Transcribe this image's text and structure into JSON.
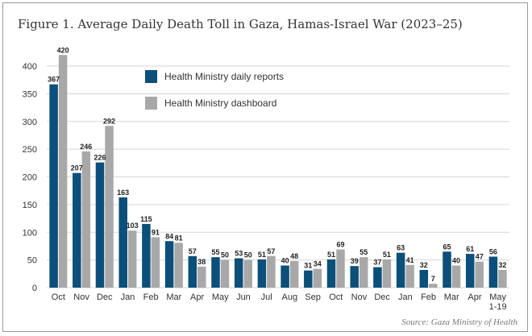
{
  "title": "Figure 1. Average Daily Death Toll in Gaza, Hamas-Israel War (2023–25)",
  "source": "Source: Gaza Ministry of Health",
  "chart_data": {
    "type": "bar",
    "ylim": [
      0,
      400
    ],
    "yticks": [
      0,
      50,
      100,
      150,
      200,
      250,
      300,
      350,
      400
    ],
    "grid": true,
    "legend_position": "top-center",
    "categories": [
      "Oct",
      "Nov",
      "Dec",
      "Jan",
      "Feb",
      "Mar",
      "Apr",
      "May",
      "Jun",
      "Jul",
      "Aug",
      "Sep",
      "Oct",
      "Nov",
      "Dec",
      "Jan",
      "Feb",
      "Mar",
      "Apr",
      "May 1-19"
    ],
    "category_lines": [
      [
        "Oct"
      ],
      [
        "Nov"
      ],
      [
        "Dec"
      ],
      [
        "Jan"
      ],
      [
        "Feb"
      ],
      [
        "Mar"
      ],
      [
        "Apr"
      ],
      [
        "May"
      ],
      [
        "Jun"
      ],
      [
        "Jul"
      ],
      [
        "Aug"
      ],
      [
        "Sep"
      ],
      [
        "Oct"
      ],
      [
        "Nov"
      ],
      [
        "Dec"
      ],
      [
        "Jan"
      ],
      [
        "Feb"
      ],
      [
        "Mar"
      ],
      [
        "Apr"
      ],
      [
        "May",
        "1-19"
      ]
    ],
    "series": [
      {
        "name": "Health Ministry daily reports",
        "color": "#0b4f7a",
        "values": [
          367,
          207,
          226,
          163,
          115,
          84,
          57,
          55,
          53,
          51,
          40,
          31,
          51,
          39,
          37,
          63,
          32,
          65,
          61,
          56
        ]
      },
      {
        "name": "Health Ministry dashboard",
        "color": "#a8a8a8",
        "values": [
          420,
          246,
          292,
          103,
          91,
          81,
          38,
          50,
          50,
          57,
          48,
          34,
          69,
          55,
          51,
          41,
          7,
          40,
          47,
          32
        ]
      }
    ]
  }
}
